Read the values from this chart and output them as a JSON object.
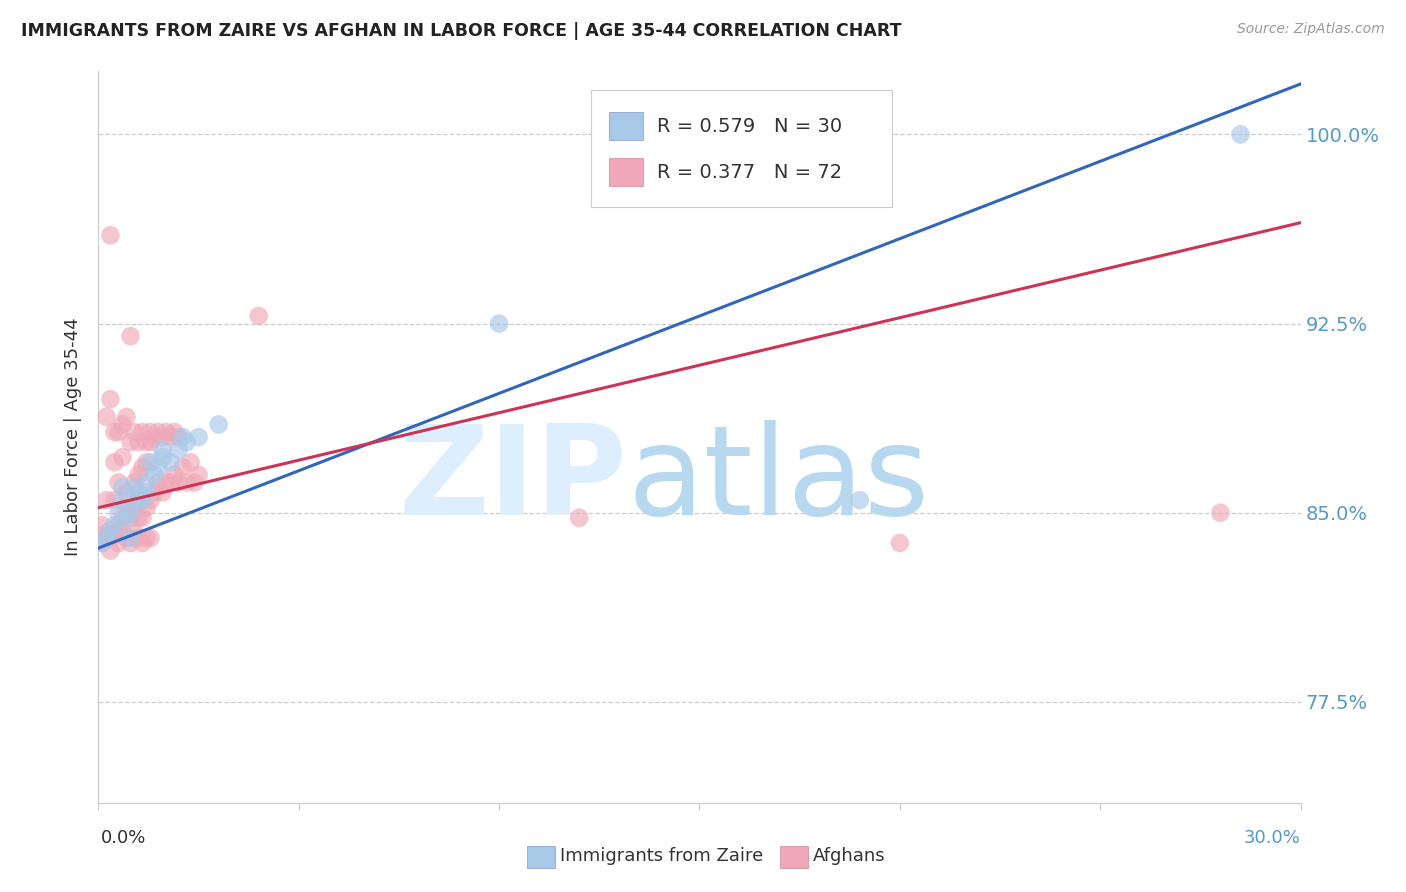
{
  "title": "IMMIGRANTS FROM ZAIRE VS AFGHAN IN LABOR FORCE | AGE 35-44 CORRELATION CHART",
  "source": "Source: ZipAtlas.com",
  "ylabel": "In Labor Force | Age 35-44",
  "yticks": [
    0.775,
    0.85,
    0.925,
    1.0
  ],
  "ytick_labels": [
    "77.5%",
    "85.0%",
    "92.5%",
    "100.0%"
  ],
  "xlim": [
    0.0,
    0.3
  ],
  "ylim": [
    0.735,
    1.025
  ],
  "zaire_color": "#a8c8e8",
  "afghan_color": "#f0a8b8",
  "zaire_line_color": "#3366bb",
  "afghan_line_color": "#cc3355",
  "legend_text_color": "#333333",
  "right_tick_color": "#5599cc",
  "zaire_R": 0.579,
  "zaire_N": 30,
  "afghan_R": 0.377,
  "afghan_N": 72,
  "legend_label_zaire": "Immigrants from Zaire",
  "legend_label_afghan": "Afghans",
  "zaire_x": [
    0.002,
    0.004,
    0.005,
    0.006,
    0.007,
    0.008,
    0.009,
    0.01,
    0.011,
    0.012,
    0.013,
    0.014,
    0.015,
    0.016,
    0.018,
    0.02,
    0.022,
    0.025,
    0.03,
    0.001,
    0.003,
    0.006,
    0.008,
    0.01,
    0.012,
    0.016,
    0.021,
    0.1,
    0.19,
    0.285
  ],
  "zaire_y": [
    0.84,
    0.845,
    0.85,
    0.855,
    0.848,
    0.85,
    0.86,
    0.858,
    0.855,
    0.862,
    0.87,
    0.865,
    0.868,
    0.875,
    0.87,
    0.875,
    0.878,
    0.88,
    0.885,
    0.838,
    0.843,
    0.86,
    0.84,
    0.855,
    0.858,
    0.872,
    0.88,
    0.925,
    0.855,
    1.0
  ],
  "afghan_x": [
    0.001,
    0.001,
    0.002,
    0.002,
    0.003,
    0.003,
    0.004,
    0.004,
    0.005,
    0.005,
    0.006,
    0.006,
    0.007,
    0.007,
    0.008,
    0.008,
    0.009,
    0.009,
    0.01,
    0.01,
    0.011,
    0.011,
    0.012,
    0.012,
    0.013,
    0.013,
    0.014,
    0.015,
    0.016,
    0.017,
    0.018,
    0.019,
    0.02,
    0.021,
    0.022,
    0.023,
    0.024,
    0.025,
    0.002,
    0.003,
    0.004,
    0.005,
    0.006,
    0.007,
    0.008,
    0.009,
    0.01,
    0.011,
    0.012,
    0.013,
    0.014,
    0.015,
    0.016,
    0.017,
    0.018,
    0.019,
    0.02,
    0.003,
    0.004,
    0.005,
    0.006,
    0.007,
    0.008,
    0.009,
    0.01,
    0.011,
    0.012,
    0.013,
    0.04,
    0.12,
    0.2,
    0.28
  ],
  "afghan_y": [
    0.845,
    0.838,
    0.842,
    0.855,
    0.835,
    0.96,
    0.855,
    0.87,
    0.845,
    0.862,
    0.848,
    0.872,
    0.852,
    0.858,
    0.848,
    0.92,
    0.852,
    0.862,
    0.848,
    0.865,
    0.848,
    0.868,
    0.852,
    0.87,
    0.855,
    0.878,
    0.858,
    0.862,
    0.858,
    0.862,
    0.862,
    0.865,
    0.862,
    0.868,
    0.862,
    0.87,
    0.862,
    0.865,
    0.888,
    0.895,
    0.882,
    0.882,
    0.885,
    0.888,
    0.878,
    0.882,
    0.878,
    0.882,
    0.878,
    0.882,
    0.88,
    0.882,
    0.88,
    0.882,
    0.88,
    0.882,
    0.88,
    0.84,
    0.842,
    0.838,
    0.842,
    0.84,
    0.838,
    0.842,
    0.84,
    0.838,
    0.84,
    0.84,
    0.928,
    0.848,
    0.838,
    0.85
  ],
  "zaire_line_x0": 0.0,
  "zaire_line_y0": 0.836,
  "zaire_line_x1": 0.3,
  "zaire_line_y1": 1.02,
  "afghan_line_x0": 0.0,
  "afghan_line_y0": 0.852,
  "afghan_line_x1": 0.3,
  "afghan_line_y1": 0.965
}
